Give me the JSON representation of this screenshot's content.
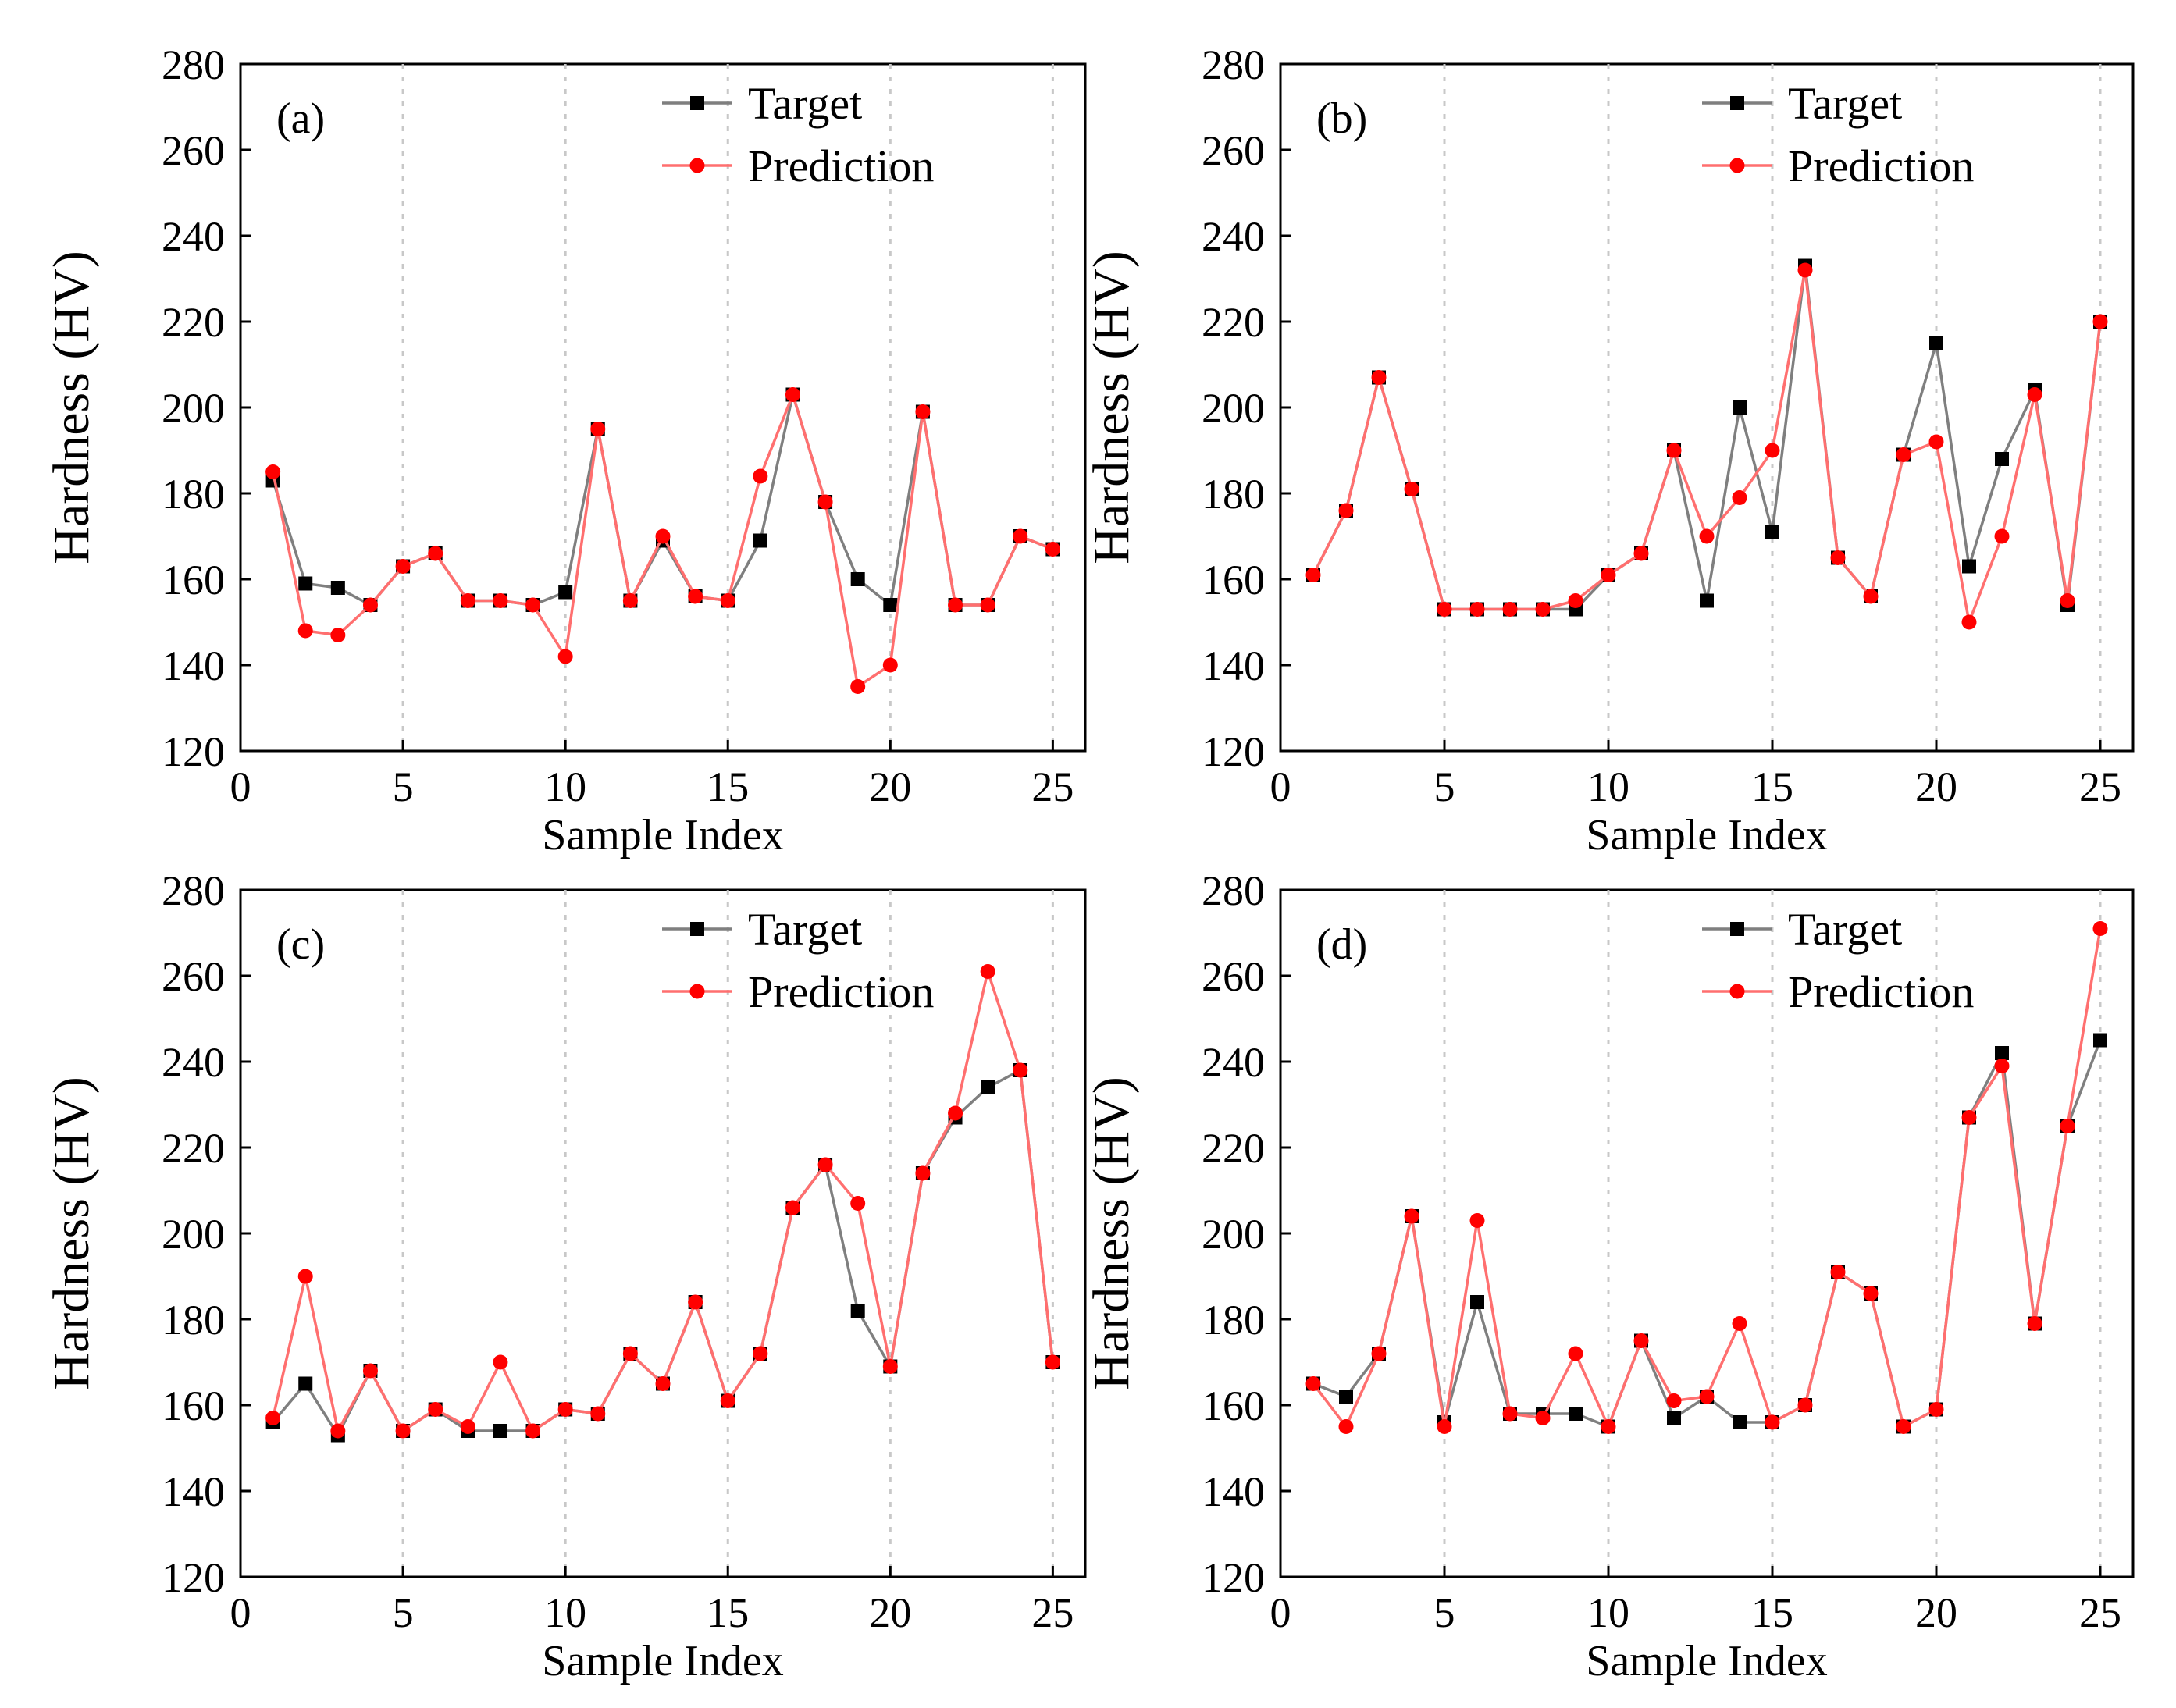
{
  "panels": [
    {
      "label": "(a)",
      "chart_data": {
        "type": "line",
        "xlabel": "Sample Index",
        "ylabel": "Hardness (HV)",
        "xlim": [
          0,
          26
        ],
        "ylim": [
          120,
          280
        ],
        "xticks": [
          0,
          5,
          10,
          15,
          20,
          25
        ],
        "yticks": [
          120,
          140,
          160,
          180,
          200,
          220,
          240,
          260,
          280
        ],
        "grid": "vertical dotted at 5, 10, 15, 20, 25",
        "legend_position": "top-right",
        "x": [
          1,
          2,
          3,
          4,
          5,
          6,
          7,
          8,
          9,
          10,
          11,
          12,
          13,
          14,
          15,
          16,
          17,
          18,
          19,
          20,
          21,
          22,
          23,
          24,
          25
        ],
        "series": [
          {
            "name": "Target",
            "color": "#000000",
            "marker": "square",
            "line_color": "#7f7f7f",
            "values": [
              183,
              159,
              158,
              154,
              163,
              166,
              155,
              155,
              154,
              157,
              195,
              155,
              169,
              156,
              155,
              169,
              203,
              178,
              160,
              154,
              199,
              154,
              154,
              170,
              167
            ]
          },
          {
            "name": "Prediction",
            "color": "#ff0000",
            "marker": "circle",
            "line_color": "#ff6f6f",
            "values": [
              185,
              148,
              147,
              154,
              163,
              166,
              155,
              155,
              154,
              142,
              195,
              155,
              170,
              156,
              155,
              184,
              203,
              178,
              135,
              140,
              199,
              154,
              154,
              170,
              167
            ]
          }
        ]
      }
    },
    {
      "label": "(b)",
      "chart_data": {
        "type": "line",
        "xlabel": "Sample Index",
        "ylabel": "Hardness (HV)",
        "xlim": [
          0,
          26
        ],
        "ylim": [
          120,
          280
        ],
        "xticks": [
          0,
          5,
          10,
          15,
          20,
          25
        ],
        "yticks": [
          120,
          140,
          160,
          180,
          200,
          220,
          240,
          260,
          280
        ],
        "grid": "vertical dotted at 5, 10, 15, 20, 25",
        "legend_position": "top-right",
        "x": [
          1,
          2,
          3,
          4,
          5,
          6,
          7,
          8,
          9,
          10,
          11,
          12,
          13,
          14,
          15,
          16,
          17,
          18,
          19,
          20,
          21,
          22,
          23,
          24,
          25
        ],
        "series": [
          {
            "name": "Target",
            "color": "#000000",
            "marker": "square",
            "line_color": "#7f7f7f",
            "values": [
              161,
              176,
              207,
              181,
              153,
              153,
              153,
              153,
              153,
              161,
              166,
              190,
              155,
              200,
              171,
              233,
              165,
              156,
              189,
              215,
              163,
              188,
              204,
              154,
              220
            ]
          },
          {
            "name": "Prediction",
            "color": "#ff0000",
            "marker": "circle",
            "line_color": "#ff6f6f",
            "values": [
              161,
              176,
              207,
              181,
              153,
              153,
              153,
              153,
              155,
              161,
              166,
              190,
              170,
              179,
              190,
              232,
              165,
              156,
              189,
              192,
              150,
              170,
              203,
              155,
              220
            ]
          }
        ]
      }
    },
    {
      "label": "(c)",
      "chart_data": {
        "type": "line",
        "xlabel": "Sample Index",
        "ylabel": "Hardness (HV)",
        "xlim": [
          0,
          26
        ],
        "ylim": [
          120,
          280
        ],
        "xticks": [
          0,
          5,
          10,
          15,
          20,
          25
        ],
        "yticks": [
          120,
          140,
          160,
          180,
          200,
          220,
          240,
          260,
          280
        ],
        "grid": "vertical dotted at 5, 10, 15, 20, 25",
        "legend_position": "top-right",
        "x": [
          1,
          2,
          3,
          4,
          5,
          6,
          7,
          8,
          9,
          10,
          11,
          12,
          13,
          14,
          15,
          16,
          17,
          18,
          19,
          20,
          21,
          22,
          23,
          24,
          25
        ],
        "series": [
          {
            "name": "Target",
            "color": "#000000",
            "marker": "square",
            "line_color": "#7f7f7f",
            "values": [
              156,
              165,
              153,
              168,
              154,
              159,
              154,
              154,
              154,
              159,
              158,
              172,
              165,
              184,
              161,
              172,
              206,
              216,
              182,
              169,
              214,
              227,
              234,
              238,
              170
            ]
          },
          {
            "name": "Prediction",
            "color": "#ff0000",
            "marker": "circle",
            "line_color": "#ff6f6f",
            "values": [
              157,
              190,
              154,
              168,
              154,
              159,
              155,
              170,
              154,
              159,
              158,
              172,
              165,
              184,
              161,
              172,
              206,
              216,
              207,
              169,
              214,
              228,
              261,
              238,
              170
            ]
          }
        ]
      }
    },
    {
      "label": "(d)",
      "chart_data": {
        "type": "line",
        "xlabel": "Sample Index",
        "ylabel": "Hardness (HV)",
        "xlim": [
          0,
          26
        ],
        "ylim": [
          120,
          280
        ],
        "xticks": [
          0,
          5,
          10,
          15,
          20,
          25
        ],
        "yticks": [
          120,
          140,
          160,
          180,
          200,
          220,
          240,
          260,
          280
        ],
        "grid": "vertical dotted at 5, 10, 15, 20, 25",
        "legend_position": "top-right",
        "x": [
          1,
          2,
          3,
          4,
          5,
          6,
          7,
          8,
          9,
          10,
          11,
          12,
          13,
          14,
          15,
          16,
          17,
          18,
          19,
          20,
          21,
          22,
          23,
          24,
          25
        ],
        "series": [
          {
            "name": "Target",
            "color": "#000000",
            "marker": "square",
            "line_color": "#7f7f7f",
            "values": [
              165,
              162,
              172,
              204,
              156,
              184,
              158,
              158,
              158,
              155,
              175,
              157,
              162,
              156,
              156,
              160,
              191,
              186,
              155,
              159,
              227,
              242,
              179,
              225,
              245
            ]
          },
          {
            "name": "Prediction",
            "color": "#ff0000",
            "marker": "circle",
            "line_color": "#ff6f6f",
            "values": [
              165,
              155,
              172,
              204,
              155,
              203,
              158,
              157,
              172,
              155,
              175,
              161,
              162,
              179,
              156,
              160,
              191,
              186,
              155,
              159,
              227,
              239,
              179,
              225,
              271
            ]
          }
        ]
      }
    }
  ]
}
